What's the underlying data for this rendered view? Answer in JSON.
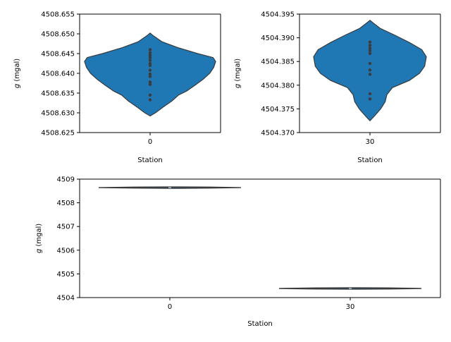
{
  "chart_data": [
    {
      "type": "violin",
      "xlabel": "Station",
      "ylabel_symbol": "g",
      "ylabel_unit": " (mgal)",
      "categories": [
        "0"
      ],
      "ylim": [
        4508.625,
        4508.655
      ],
      "yticks": [
        "4508.625",
        "4508.630",
        "4508.635",
        "4508.640",
        "4508.645",
        "4508.650",
        "4508.655"
      ],
      "series": [
        {
          "category": "0",
          "profile": [
            [
              4508.6292,
              0.0
            ],
            [
              4508.63,
              0.08
            ],
            [
              4508.6315,
              0.2
            ],
            [
              4508.633,
              0.33
            ],
            [
              4508.6345,
              0.43
            ],
            [
              4508.6355,
              0.55
            ],
            [
              4508.637,
              0.68
            ],
            [
              4508.6385,
              0.8
            ],
            [
              4508.64,
              0.9
            ],
            [
              4508.6415,
              0.96
            ],
            [
              4508.643,
              0.99
            ],
            [
              4508.644,
              0.95
            ],
            [
              4508.645,
              0.72
            ],
            [
              4508.6465,
              0.42
            ],
            [
              4508.648,
              0.18
            ],
            [
              4508.6495,
              0.05
            ],
            [
              4508.6502,
              0.0
            ]
          ],
          "points": [
            4508.6333,
            4508.6345,
            4508.6372,
            4508.6378,
            4508.6392,
            4508.6398,
            4508.6408,
            4508.642,
            4508.6425,
            4508.6433,
            4508.644,
            4508.6446,
            4508.6452,
            4508.646
          ]
        }
      ]
    },
    {
      "type": "violin",
      "xlabel": "Station",
      "ylabel_symbol": "g",
      "ylabel_unit": " (mgal)",
      "categories": [
        "30"
      ],
      "ylim": [
        4504.37,
        4504.395
      ],
      "yticks": [
        "4504.370",
        "4504.375",
        "4504.380",
        "4504.385",
        "4504.390",
        "4504.395"
      ],
      "series": [
        {
          "category": "30",
          "profile": [
            [
              4504.3725,
              0.0
            ],
            [
              4504.3735,
              0.08
            ],
            [
              4504.375,
              0.19
            ],
            [
              4504.3765,
              0.27
            ],
            [
              4504.378,
              0.3
            ],
            [
              4504.3795,
              0.4
            ],
            [
              4504.381,
              0.7
            ],
            [
              4504.3825,
              0.88
            ],
            [
              4504.384,
              0.97
            ],
            [
              4504.386,
              1.0
            ],
            [
              4504.3875,
              0.92
            ],
            [
              4504.389,
              0.7
            ],
            [
              4504.3905,
              0.45
            ],
            [
              4504.392,
              0.18
            ],
            [
              4504.3932,
              0.05
            ],
            [
              4504.3937,
              0.0
            ]
          ],
          "points": [
            4504.3771,
            4504.3782,
            4504.3823,
            4504.3832,
            4504.3846,
            4504.3867,
            4504.3873,
            4504.3878,
            4504.3884,
            4504.3891
          ]
        }
      ]
    },
    {
      "type": "violin",
      "xlabel": "Station",
      "ylabel_symbol": "g",
      "ylabel_unit": " (mgal)",
      "categories": [
        "0",
        "30"
      ],
      "ylim": [
        4504,
        4509
      ],
      "yticks": [
        "4504",
        "4505",
        "4506",
        "4507",
        "4508",
        "4509"
      ],
      "series": [
        {
          "category": "0",
          "center": 4508.641
        },
        {
          "category": "30",
          "center": 4504.385
        }
      ]
    }
  ],
  "colors": {
    "violin_fill": "#1f77b4",
    "outline": "#3a3a3a",
    "points": "#3c3c3c",
    "axis": "#000000",
    "background": "#ffffff"
  }
}
